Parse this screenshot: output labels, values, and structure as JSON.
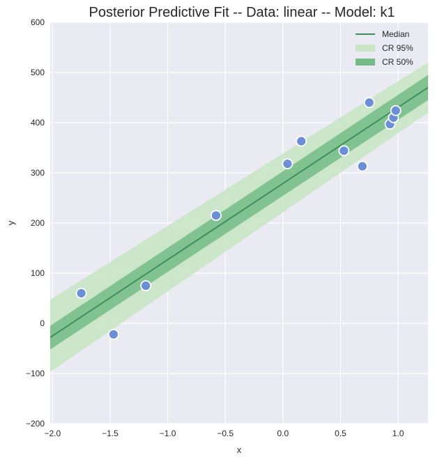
{
  "chart_data": {
    "type": "line",
    "title": "Posterior Predictive Fit -- Data: linear -- Model: k1",
    "xlabel": "x",
    "ylabel": "y",
    "xlim": [
      -2.02,
      1.26
    ],
    "ylim": [
      -200,
      600
    ],
    "xticks": [
      -2.0,
      -1.5,
      -1.0,
      -0.5,
      0.0,
      0.5,
      1.0
    ],
    "xtick_labels": [
      "−2.0",
      "−1.5",
      "−1.0",
      "−0.5",
      "0.0",
      "0.5",
      "1.0"
    ],
    "yticks": [
      -200,
      -100,
      0,
      100,
      200,
      300,
      400,
      500,
      600
    ],
    "ytick_labels": [
      "−200",
      "−100",
      "0",
      "100",
      "200",
      "300",
      "400",
      "500",
      "600"
    ],
    "grid": true,
    "legend_position": "top-right",
    "legend": [
      "Median",
      "CR 95%",
      "CR 50%"
    ],
    "colors": {
      "background": "#eaeaf2",
      "grid": "#ffffff",
      "median": "#3f8f5a",
      "cr95": "#c8e6c4",
      "cr50": "#74bb87",
      "points": "#6b8fd6",
      "point_edge": "#ffffff"
    },
    "median": {
      "x": [
        -2.02,
        1.26
      ],
      "y": [
        -28,
        470
      ]
    },
    "cr50": {
      "x": [
        -2.02,
        1.26
      ],
      "lower": [
        -52,
        445
      ],
      "upper": [
        -5,
        495
      ]
    },
    "cr95": {
      "x": [
        -2.02,
        1.26
      ],
      "lower": [
        -97,
        420
      ],
      "upper": [
        47,
        520
      ]
    },
    "points": [
      {
        "x": -1.75,
        "y": 60
      },
      {
        "x": -1.47,
        "y": -22
      },
      {
        "x": -1.19,
        "y": 75
      },
      {
        "x": -0.58,
        "y": 215
      },
      {
        "x": 0.04,
        "y": 318
      },
      {
        "x": 0.16,
        "y": 363
      },
      {
        "x": 0.53,
        "y": 344
      },
      {
        "x": 0.69,
        "y": 313
      },
      {
        "x": 0.75,
        "y": 440
      },
      {
        "x": 0.93,
        "y": 397
      },
      {
        "x": 0.96,
        "y": 410
      },
      {
        "x": 0.98,
        "y": 424
      }
    ]
  }
}
